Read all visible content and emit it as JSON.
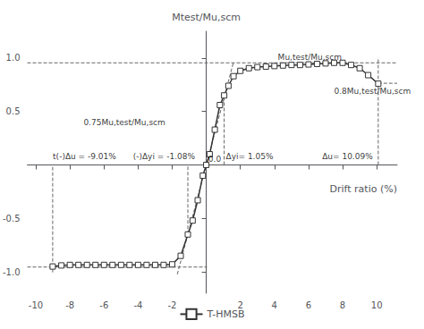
{
  "chart_data": {
    "type": "line",
    "xlabel": "Drift ratio (%)",
    "ylabel": "Mtest/Mu,scm",
    "xlim": [
      -10.5,
      11.2
    ],
    "ylim": [
      -1.2,
      1.25
    ],
    "xticks": [
      -10,
      -8,
      -6,
      -4,
      -2,
      2,
      4,
      6,
      8,
      10
    ],
    "yticks": [
      {
        "value": -1.0,
        "label": "-1.0"
      },
      -0.5,
      0.5,
      {
        "value": 1.0,
        "label": "1.0"
      }
    ],
    "grid": false,
    "legend": "bottom",
    "series": [
      {
        "name": "T-HMSB",
        "color": "#333333",
        "marker": "square",
        "x": [
          -9.01,
          -8.5,
          -8.0,
          -7.5,
          -7.0,
          -6.5,
          -6.0,
          -5.5,
          -5.0,
          -4.5,
          -4.0,
          -3.5,
          -3.0,
          -2.5,
          -2.0,
          -1.5,
          -1.08,
          -0.8,
          -0.5,
          -0.2,
          0.0,
          0.2,
          0.5,
          0.8,
          1.05,
          1.3,
          1.6,
          2.0,
          2.5,
          3.0,
          3.5,
          4.0,
          4.5,
          5.0,
          5.5,
          6.0,
          6.5,
          7.0,
          7.5,
          8.0,
          8.5,
          9.0,
          9.5,
          10.09
        ],
        "values": [
          -0.95,
          -0.94,
          -0.935,
          -0.935,
          -0.935,
          -0.935,
          -0.935,
          -0.935,
          -0.935,
          -0.935,
          -0.935,
          -0.935,
          -0.935,
          -0.935,
          -0.93,
          -0.85,
          -0.65,
          -0.52,
          -0.33,
          -0.1,
          0.0,
          0.1,
          0.33,
          0.56,
          0.65,
          0.74,
          0.83,
          0.88,
          0.905,
          0.915,
          0.92,
          0.925,
          0.93,
          0.935,
          0.935,
          0.94,
          0.945,
          0.95,
          0.955,
          0.955,
          0.935,
          0.905,
          0.84,
          0.76
        ]
      }
    ],
    "reference_lines": [
      {
        "color": "#666666",
        "line_style": "dashed",
        "x": [
          -1.7,
          1.6
        ],
        "y": [
          -1.0231481481481481,
          0.9629629629629629
        ]
      },
      {
        "color": "#666666",
        "line_style": "dashed",
        "x": [
          -10.5,
          11.2
        ],
        "y": [
          0.955,
          0.955
        ]
      },
      {
        "color": "#666666",
        "line_style": "dashed",
        "x": [
          -10.5,
          0.05
        ],
        "y": [
          -0.955,
          -0.955
        ]
      },
      {
        "color": "#666666",
        "line_style": "dashed",
        "x": [
          10.09,
          11.2
        ],
        "y": [
          0.764,
          0.764
        ]
      },
      {
        "color": "#666666",
        "line_style": "dashed",
        "x": [
          1.05,
          1.05
        ],
        "y": [
          0,
          0.65
        ]
      },
      {
        "color": "#666666",
        "line_style": "dashed",
        "x": [
          -1.08,
          -1.08
        ],
        "y": [
          -0.65,
          0
        ]
      },
      {
        "color": "#666666",
        "line_style": "dashed",
        "x": [
          10.09,
          10.09
        ],
        "y": [
          0,
          1.005
        ]
      },
      {
        "color": "#666666",
        "line_style": "dashed",
        "x": [
          -9.01,
          -9.01
        ],
        "y": [
          -1.005,
          0
        ]
      }
    ],
    "annotations": [
      {
        "text": "t(-)Δu = -9.01%",
        "x": -9.0,
        "y": 0.04
      },
      {
        "text": "(-)Δyi = -1.08%",
        "x": -4.3,
        "y": 0.04
      },
      {
        "text": "Δyi= 1.05%",
        "x": 1.15,
        "y": 0.04
      },
      {
        "text": "Δu= 10.09%",
        "x": 6.8,
        "y": 0.04
      },
      {
        "text": "Mu,test/Mu,scm",
        "x": 4.2,
        "y": 0.97
      },
      {
        "text": "0.75Mu,test/Mu,scm",
        "x": -7.2,
        "y": 0.36
      },
      {
        "text": "0.8Mu,test/Mu,scm",
        "x": 7.5,
        "y": 0.65
      },
      {
        "text": "0.0",
        "x": 0.12,
        "y": 0.02
      }
    ]
  }
}
